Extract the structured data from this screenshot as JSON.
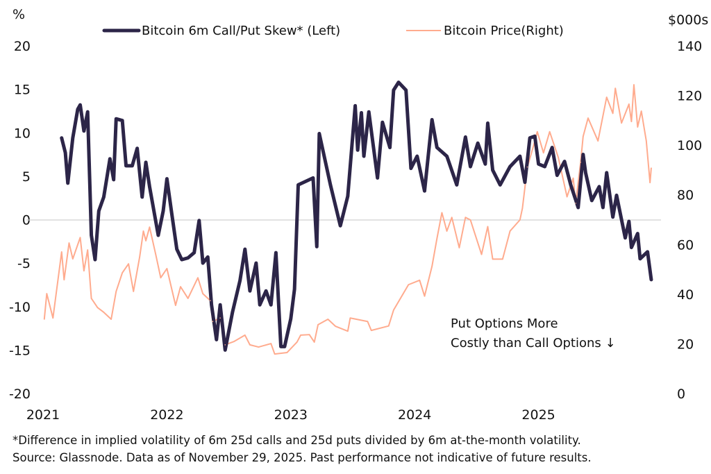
{
  "chart_data": {
    "type": "line",
    "left_axis_unit": "%",
    "right_axis_unit": "$000s",
    "left_ylim": [
      -20,
      20
    ],
    "left_ticks": [
      20,
      15,
      10,
      5,
      0,
      -5,
      -10,
      -15,
      -20
    ],
    "right_ylim": [
      0,
      140
    ],
    "right_ticks": [
      140,
      120,
      100,
      80,
      60,
      40,
      20,
      0
    ],
    "x_ticks": [
      "2021",
      "2022",
      "2023",
      "2024",
      "2025"
    ],
    "xlim": [
      2021,
      2025.95
    ],
    "zero_line": true,
    "grid": false,
    "legend_position": "top",
    "annotation": [
      "Put Options More",
      "Costly than Call Options ↓"
    ],
    "series": [
      {
        "name": "Bitcoin 6m Call/Put Skew* (Left)",
        "axis": "left",
        "color": "#2c2548",
        "x": [
          2021.15,
          2021.18,
          2021.2,
          2021.24,
          2021.28,
          2021.3,
          2021.33,
          2021.36,
          2021.39,
          2021.42,
          2021.45,
          2021.49,
          2021.54,
          2021.57,
          2021.59,
          2021.64,
          2021.67,
          2021.72,
          2021.76,
          2021.8,
          2021.83,
          2021.86,
          2021.9,
          2021.93,
          2021.97,
          2022.0,
          2022.04,
          2022.08,
          2022.12,
          2022.17,
          2022.22,
          2022.26,
          2022.29,
          2022.33,
          2022.36,
          2022.4,
          2022.43,
          2022.47,
          2022.53,
          2022.59,
          2022.63,
          2022.67,
          2022.72,
          2022.75,
          2022.8,
          2022.84,
          2022.88,
          2022.92,
          2022.95,
          2023.0,
          2023.03,
          2023.06,
          2023.18,
          2023.21,
          2023.23,
          2023.32,
          2023.4,
          2023.46,
          2023.52,
          2023.54,
          2023.57,
          2023.59,
          2023.63,
          2023.7,
          2023.74,
          2023.8,
          2023.83,
          2023.87,
          2023.93,
          2023.97,
          2024.02,
          2024.08,
          2024.14,
          2024.18,
          2024.26,
          2024.34,
          2024.41,
          2024.45,
          2024.51,
          2024.57,
          2024.59,
          2024.63,
          2024.69,
          2024.77,
          2024.85,
          2024.89,
          2024.93,
          2024.97,
          2025.0,
          2025.05,
          2025.11,
          2025.15,
          2025.21,
          2025.26,
          2025.32,
          2025.36,
          2025.38,
          2025.43,
          2025.49,
          2025.52,
          2025.55,
          2025.6,
          2025.63,
          2025.7,
          2025.73,
          2025.75,
          2025.8,
          2025.82,
          2025.88,
          2025.91
        ],
        "y": [
          9.4,
          7.7,
          4.2,
          9.4,
          12.7,
          13.2,
          10.2,
          12.4,
          -1.8,
          -4.6,
          1.0,
          2.6,
          7.0,
          4.6,
          11.6,
          11.4,
          6.2,
          6.2,
          8.2,
          2.6,
          6.6,
          3.8,
          0.6,
          -1.8,
          1.0,
          4.7,
          0.6,
          -3.4,
          -4.6,
          -4.4,
          -3.8,
          -0.1,
          -5.0,
          -4.3,
          -9.8,
          -13.8,
          -9.8,
          -15.0,
          -10.6,
          -7.0,
          -3.4,
          -8.2,
          -5.0,
          -9.8,
          -8.2,
          -9.8,
          -3.8,
          -14.6,
          -14.6,
          -11.4,
          -8.0,
          4.0,
          4.8,
          -3.1,
          9.9,
          4.0,
          -0.7,
          2.7,
          13.1,
          8.0,
          12.3,
          7.3,
          12.4,
          4.8,
          11.2,
          8.3,
          14.9,
          15.8,
          14.9,
          5.9,
          7.3,
          3.3,
          11.5,
          8.3,
          7.3,
          4.0,
          9.5,
          6.1,
          8.8,
          6.4,
          11.1,
          5.7,
          4.0,
          6.1,
          7.3,
          4.3,
          9.4,
          9.6,
          6.4,
          6.1,
          8.3,
          5.1,
          6.7,
          4.0,
          1.4,
          7.5,
          5.4,
          2.2,
          3.8,
          1.4,
          5.4,
          0.3,
          2.8,
          -2.1,
          -0.2,
          -3.2,
          -1.6,
          -4.5,
          -3.7,
          -6.9
        ]
      },
      {
        "name": "Bitcoin Price(Right)",
        "axis": "right",
        "color": "#ffab8e",
        "x": [
          2021.01,
          2021.03,
          2021.08,
          2021.15,
          2021.17,
          2021.21,
          2021.24,
          2021.3,
          2021.33,
          2021.36,
          2021.39,
          2021.44,
          2021.49,
          2021.55,
          2021.59,
          2021.64,
          2021.69,
          2021.73,
          2021.78,
          2021.81,
          2021.83,
          2021.86,
          2021.91,
          2021.95,
          2022.0,
          2022.07,
          2022.11,
          2022.17,
          2022.25,
          2022.29,
          2022.35,
          2022.37,
          2022.43,
          2022.47,
          2022.54,
          2022.63,
          2022.67,
          2022.74,
          2022.84,
          2022.87,
          2022.97,
          2023.05,
          2023.08,
          2023.15,
          2023.19,
          2023.22,
          2023.3,
          2023.36,
          2023.46,
          2023.48,
          2023.62,
          2023.65,
          2023.79,
          2023.83,
          2023.95,
          2024.04,
          2024.08,
          2024.14,
          2024.18,
          2024.22,
          2024.26,
          2024.3,
          2024.36,
          2024.41,
          2024.45,
          2024.54,
          2024.59,
          2024.63,
          2024.71,
          2024.77,
          2024.85,
          2024.87,
          2024.91,
          2024.96,
          2024.99,
          2025.04,
          2025.09,
          2025.16,
          2025.23,
          2025.28,
          2025.3,
          2025.34,
          2025.36,
          2025.4,
          2025.48,
          2025.55,
          2025.6,
          2025.62,
          2025.67,
          2025.73,
          2025.75,
          2025.77,
          2025.8,
          2025.83,
          2025.87,
          2025.9,
          2025.91
        ],
        "y": [
          29.9,
          40.2,
          30.4,
          57,
          45.8,
          60.6,
          54.2,
          62.8,
          49.4,
          57.8,
          38.3,
          34.6,
          32.7,
          29.9,
          41.1,
          48.6,
          52.2,
          41.1,
          55,
          65.4,
          61.5,
          67,
          55.9,
          46.6,
          50.3,
          35.5,
          43,
          38.3,
          46.6,
          40.2,
          37.4,
          29,
          30.4,
          19.6,
          20.9,
          23.5,
          19.6,
          18.7,
          20.1,
          15.9,
          16.5,
          20.7,
          23.5,
          23.7,
          20.7,
          27.7,
          29.9,
          27.1,
          25.1,
          30.4,
          29,
          25.4,
          27.2,
          33.6,
          43.8,
          45.6,
          39.2,
          51.2,
          62.4,
          72.8,
          65.4,
          70.9,
          58.7,
          70.9,
          69.9,
          56,
          67.2,
          54.1,
          54.1,
          65.4,
          69.9,
          74.6,
          91.2,
          99.8,
          105.4,
          96.9,
          105.4,
          95,
          79.2,
          86.7,
          76.6,
          93.1,
          103.5,
          110.9,
          101.7,
          119.3,
          112.8,
          122.9,
          108.9,
          116.5,
          109.5,
          124.3,
          107.3,
          113.7,
          101.7,
          84.9,
          90.8
        ]
      }
    ]
  },
  "footnote": [
    "*Difference in implied volatility of 6m 25d  calls and 25d  puts divided by 6m at-the-month volatility.",
    "Source: Glassnode. Data as of November 29, 2025. Past performance not indicative of future results."
  ]
}
